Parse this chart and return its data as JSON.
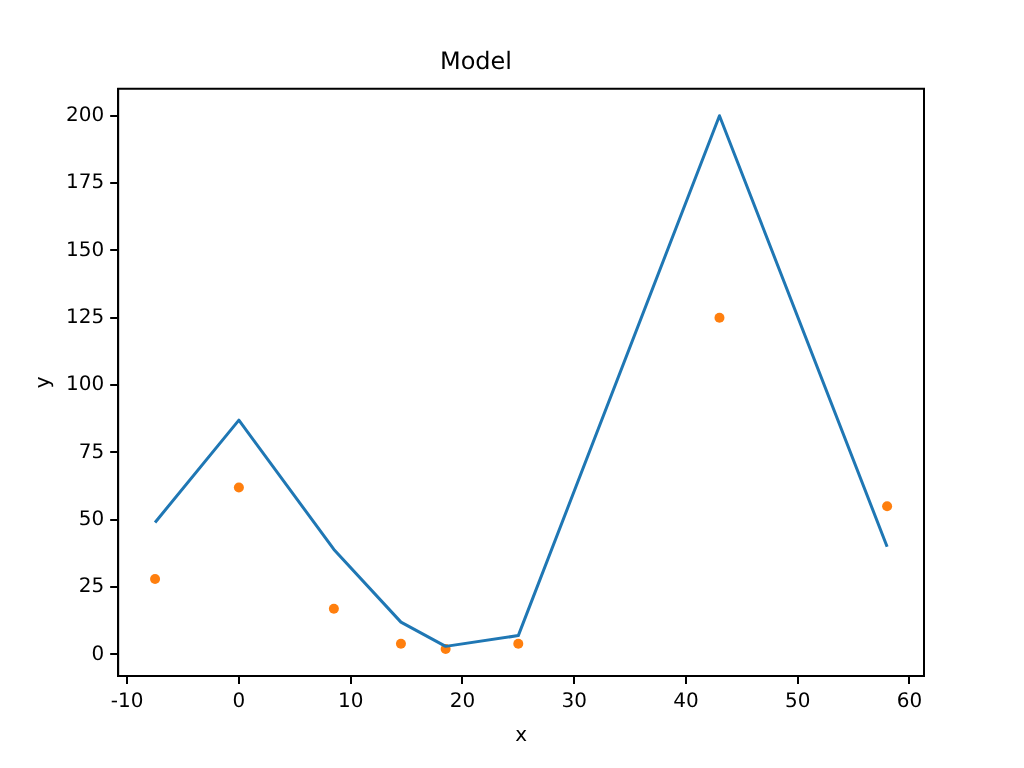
{
  "chart_data": {
    "type": "line",
    "title": "Model",
    "xlabel": "x",
    "ylabel": "y",
    "xlim": [
      -10.8,
      61.3
    ],
    "ylim": [
      -8,
      210
    ],
    "xticks": [
      -10,
      0,
      10,
      20,
      30,
      40,
      50,
      60
    ],
    "yticks": [
      0,
      25,
      50,
      75,
      100,
      125,
      150,
      175,
      200
    ],
    "grid": false,
    "legend": false,
    "series": [
      {
        "color": "#1f77b4",
        "marker": "none",
        "x": [
          -7.5,
          0,
          8.5,
          14.5,
          18.5,
          25,
          43,
          58
        ],
        "values": [
          49,
          87,
          39,
          12,
          3,
          7,
          200,
          40
        ]
      },
      {
        "type": "scatter",
        "color": "#ff7f0e",
        "marker": "circle",
        "x": [
          -7.5,
          0,
          8.5,
          14.5,
          18.5,
          25,
          43,
          58
        ],
        "values": [
          28,
          62,
          17,
          4,
          2,
          4,
          125,
          55
        ]
      }
    ]
  }
}
